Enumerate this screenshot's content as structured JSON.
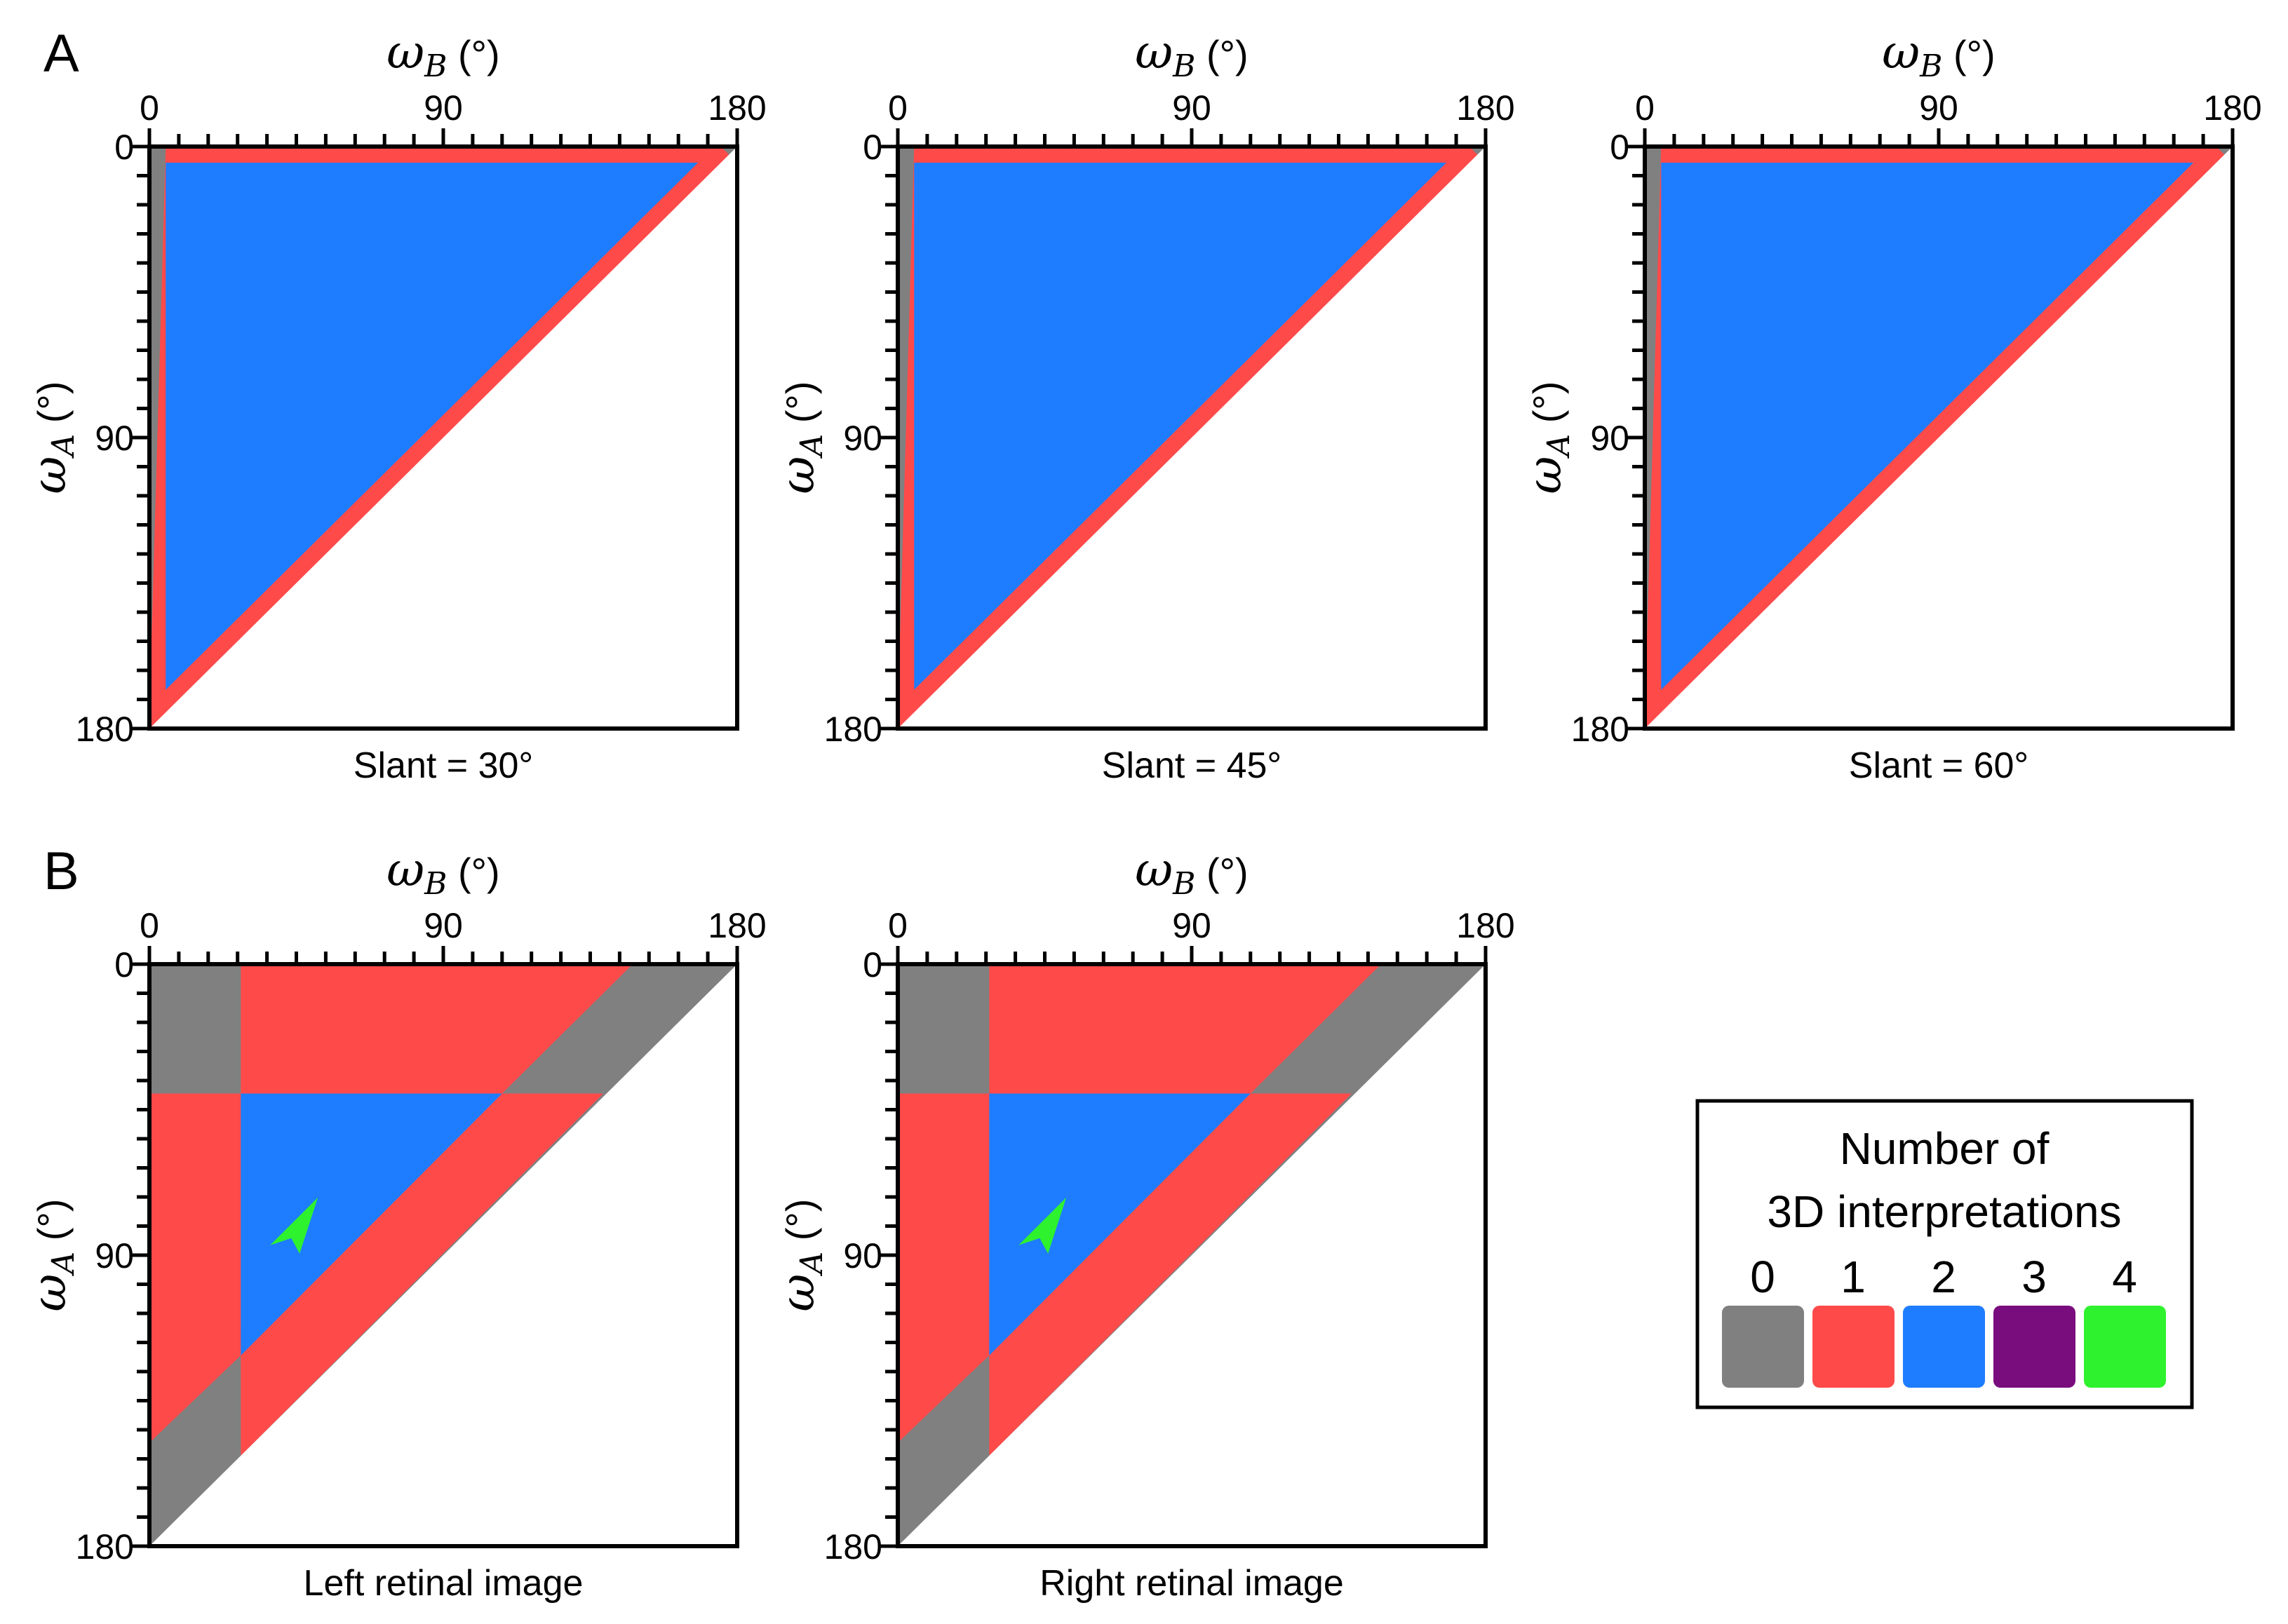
{
  "figure": {
    "panel_labels": [
      "A",
      "B"
    ],
    "colors": {
      "0": "#808080",
      "1": "#ff4a4a",
      "2": "#1e7dff",
      "3": "#7a0d7e",
      "4": "#2ef22e",
      "frame": "#000000"
    }
  },
  "legend": {
    "title_line1": "Number of",
    "title_line2": "3D interpretations",
    "items": [
      {
        "label": "0",
        "color": "#808080"
      },
      {
        "label": "1",
        "color": "#ff4a4a"
      },
      {
        "label": "2",
        "color": "#1e7dff"
      },
      {
        "label": "3",
        "color": "#7a0d7e"
      },
      {
        "label": "4",
        "color": "#2ef22e"
      }
    ]
  },
  "chart_data": [
    {
      "type": "heatmap",
      "panel": "A",
      "title": "Slant = 30°",
      "xlabel": {
        "symbol": "ω",
        "sub": "B",
        "unit": " (°)"
      },
      "ylabel": {
        "symbol": "ω",
        "sub": "A",
        "unit": " (°)"
      },
      "xlim": [
        0,
        180
      ],
      "ylim": [
        0,
        180
      ],
      "xticks": [
        0,
        90,
        180
      ],
      "yticks": [
        0,
        90,
        180
      ],
      "minor_tick_step": 9,
      "regions": [
        {
          "count": 0,
          "vertices": [
            [
              0,
              0
            ],
            [
              180,
              0
            ],
            [
              180,
              180
            ],
            [
              0,
              180
            ]
          ]
        },
        {
          "count": 1,
          "vertices": [
            [
              5,
              0
            ],
            [
              175,
              0
            ],
            [
              180,
              5
            ],
            [
              180,
              180
            ],
            [
              0,
              180
            ],
            [
              0,
              175
            ]
          ]
        },
        {
          "count": 2,
          "vertices": [
            [
              5,
              5
            ],
            [
              168,
              5
            ],
            [
              5,
              168
            ]
          ]
        },
        {
          "count": null,
          "vertices": [
            [
              180,
              0
            ],
            [
              180,
              180
            ],
            [
              0,
              180
            ]
          ]
        }
      ]
    },
    {
      "type": "heatmap",
      "panel": "A",
      "title": "Slant = 45°",
      "xlabel": {
        "symbol": "ω",
        "sub": "B",
        "unit": " (°)"
      },
      "ylabel": {
        "symbol": "ω",
        "sub": "A",
        "unit": " (°)"
      },
      "xlim": [
        0,
        180
      ],
      "ylim": [
        0,
        180
      ],
      "xticks": [
        0,
        90,
        180
      ],
      "yticks": [
        0,
        90,
        180
      ],
      "minor_tick_step": 9,
      "regions": [
        {
          "count": 0,
          "vertices": [
            [
              0,
              0
            ],
            [
              180,
              0
            ],
            [
              180,
              180
            ],
            [
              0,
              180
            ]
          ]
        },
        {
          "count": 1,
          "vertices": [
            [
              5,
              0
            ],
            [
              175,
              0
            ],
            [
              180,
              5
            ],
            [
              180,
              180
            ],
            [
              0,
              180
            ],
            [
              0,
              175
            ]
          ]
        },
        {
          "count": 2,
          "vertices": [
            [
              5,
              5
            ],
            [
              168,
              5
            ],
            [
              5,
              168
            ]
          ]
        },
        {
          "count": null,
          "vertices": [
            [
              180,
              0
            ],
            [
              180,
              180
            ],
            [
              0,
              180
            ]
          ]
        }
      ]
    },
    {
      "type": "heatmap",
      "panel": "A",
      "title": "Slant = 60°",
      "xlabel": {
        "symbol": "ω",
        "sub": "B",
        "unit": " (°)"
      },
      "ylabel": {
        "symbol": "ω",
        "sub": "A",
        "unit": " (°)"
      },
      "xlim": [
        0,
        180
      ],
      "ylim": [
        0,
        180
      ],
      "xticks": [
        0,
        90,
        180
      ],
      "yticks": [
        0,
        90,
        180
      ],
      "minor_tick_step": 9,
      "regions": [
        {
          "count": 0,
          "vertices": [
            [
              0,
              0
            ],
            [
              180,
              0
            ],
            [
              180,
              180
            ],
            [
              0,
              180
            ]
          ]
        },
        {
          "count": 1,
          "vertices": [
            [
              5,
              0
            ],
            [
              175,
              0
            ],
            [
              180,
              5
            ],
            [
              180,
              180
            ],
            [
              0,
              180
            ],
            [
              0,
              175
            ]
          ]
        },
        {
          "count": 2,
          "vertices": [
            [
              5,
              5
            ],
            [
              168,
              5
            ],
            [
              5,
              168
            ]
          ]
        },
        {
          "count": null,
          "vertices": [
            [
              180,
              0
            ],
            [
              180,
              180
            ],
            [
              0,
              180
            ]
          ]
        }
      ]
    },
    {
      "type": "heatmap",
      "panel": "B",
      "title": "Left retinal image",
      "xlabel": {
        "symbol": "ω",
        "sub": "B",
        "unit": " (°)"
      },
      "ylabel": {
        "symbol": "ω",
        "sub": "A",
        "unit": " (°)"
      },
      "xlim": [
        0,
        180
      ],
      "ylim": [
        0,
        180
      ],
      "xticks": [
        0,
        90,
        180
      ],
      "yticks": [
        0,
        90,
        180
      ],
      "minor_tick_step": 9,
      "regions": [
        {
          "count": 0,
          "vertices": [
            [
              0,
              0
            ],
            [
              180,
              0
            ],
            [
              180,
              180
            ],
            [
              0,
              180
            ]
          ]
        },
        {
          "count": 1,
          "vertices": [
            [
              28,
              0
            ],
            [
              148,
              0
            ],
            [
              108,
              40
            ],
            [
              28,
              40
            ]
          ]
        },
        {
          "count": 1,
          "vertices": [
            [
              0,
              40
            ],
            [
              28,
              40
            ],
            [
              28,
              121
            ],
            [
              0,
              148
            ]
          ]
        },
        {
          "count": 1,
          "vertices": [
            [
              28,
              121
            ],
            [
              108,
              40
            ],
            [
              139,
              40
            ],
            [
              28,
              152
            ]
          ]
        },
        {
          "count": 2,
          "vertices": [
            [
              28,
              40
            ],
            [
              108,
              40
            ],
            [
              28,
              121
            ]
          ]
        },
        {
          "count": null,
          "vertices": [
            [
              180,
              0
            ],
            [
              180,
              180
            ],
            [
              0,
              180
            ]
          ]
        }
      ],
      "markers": [
        {
          "count": 4,
          "x": 43,
          "y": 83
        }
      ]
    },
    {
      "type": "heatmap",
      "panel": "B",
      "title": "Right retinal image",
      "xlabel": {
        "symbol": "ω",
        "sub": "B",
        "unit": " (°)"
      },
      "ylabel": {
        "symbol": "ω",
        "sub": "A",
        "unit": " (°)"
      },
      "xlim": [
        0,
        180
      ],
      "ylim": [
        0,
        180
      ],
      "xticks": [
        0,
        90,
        180
      ],
      "yticks": [
        0,
        90,
        180
      ],
      "minor_tick_step": 9,
      "regions": [
        {
          "count": 0,
          "vertices": [
            [
              0,
              0
            ],
            [
              180,
              0
            ],
            [
              180,
              180
            ],
            [
              0,
              180
            ]
          ]
        },
        {
          "count": 1,
          "vertices": [
            [
              28,
              0
            ],
            [
              148,
              0
            ],
            [
              108,
              40
            ],
            [
              28,
              40
            ]
          ]
        },
        {
          "count": 1,
          "vertices": [
            [
              0,
              40
            ],
            [
              28,
              40
            ],
            [
              28,
              121
            ],
            [
              0,
              148
            ]
          ]
        },
        {
          "count": 1,
          "vertices": [
            [
              28,
              121
            ],
            [
              108,
              40
            ],
            [
              139,
              40
            ],
            [
              28,
              152
            ]
          ]
        },
        {
          "count": 2,
          "vertices": [
            [
              28,
              40
            ],
            [
              108,
              40
            ],
            [
              28,
              121
            ]
          ]
        },
        {
          "count": null,
          "vertices": [
            [
              180,
              0
            ],
            [
              180,
              180
            ],
            [
              0,
              180
            ]
          ]
        }
      ],
      "markers": [
        {
          "count": 4,
          "x": 43,
          "y": 83
        }
      ]
    }
  ]
}
